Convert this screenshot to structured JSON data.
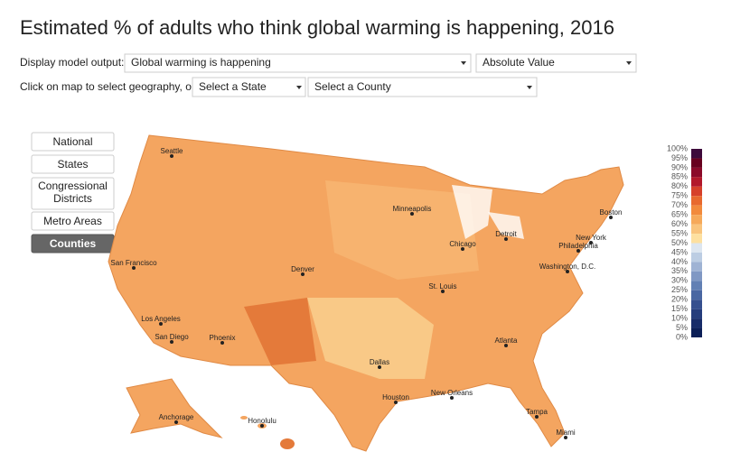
{
  "header": {
    "title": "Estimated % of adults who think global warming is happening, 2016"
  },
  "controls": {
    "model_label": "Display model output:",
    "model_select": "Global warming is happening",
    "value_select": "Absolute Value",
    "geo_label": "Click on map to select geography, or:",
    "state_select": "Select a State",
    "county_select": "Select a County"
  },
  "buttons": [
    "National",
    "States",
    "Congressional Districts",
    "Metro Areas",
    "Counties"
  ],
  "cities": [
    "Seattle",
    "San Francisco",
    "Los Angeles",
    "San Diego",
    "Phoenix",
    "Denver",
    "Minneapolis",
    "Chicago",
    "Detroit",
    "St. Louis",
    "Dallas",
    "Houston",
    "New Orleans",
    "Atlanta",
    "Tampa",
    "Miami",
    "Boston",
    "New York",
    "Philadelphia",
    "Washington, D.C.",
    "Anchorage",
    "Honolulu"
  ],
  "legend": {
    "labels": [
      "100%",
      "95%",
      "90%",
      "85%",
      "80%",
      "75%",
      "70%",
      "65%",
      "60%",
      "55%",
      "50%",
      "45%",
      "40%",
      "35%",
      "30%",
      "25%",
      "20%",
      "15%",
      "10%",
      "5%",
      "0%"
    ],
    "colors": [
      "#3d0a3b",
      "#67001f",
      "#8b0a2a",
      "#b2182b",
      "#d6402a",
      "#e8692e",
      "#f28a3c",
      "#f6a95a",
      "#f9c47d",
      "#fde0a0",
      "#dde6f0",
      "#bccde3",
      "#9fb3d4",
      "#8098c4",
      "#6280b4",
      "#4a67a2",
      "#36508f",
      "#253d7c",
      "#172c69",
      "#0c1f57"
    ]
  }
}
